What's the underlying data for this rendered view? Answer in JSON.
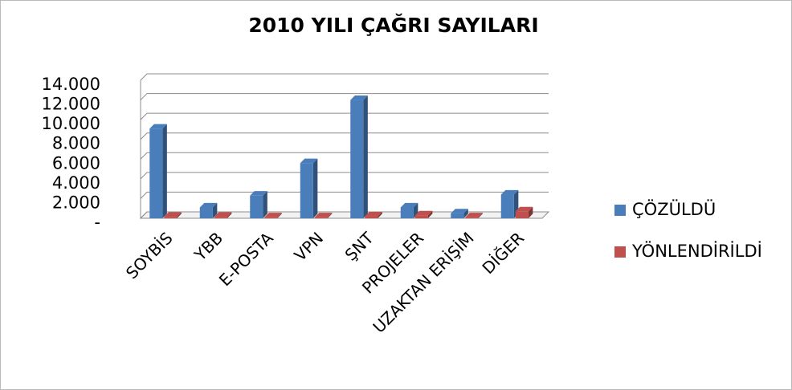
{
  "chart_data": {
    "type": "bar",
    "title": "2010 YILI ÇAĞRI SAYILARI",
    "categories": [
      "SOYBİS",
      "YBB",
      "E-POSTA",
      "VPN",
      "ŞNT",
      "PROJELER",
      "UZAKTAN ERİŞİM",
      "DİĞER"
    ],
    "series": [
      {
        "name": "ÇÖZÜLDÜ",
        "color": "#4a7ebb",
        "values": [
          9100,
          1100,
          2300,
          5600,
          12000,
          1100,
          500,
          2400
        ]
      },
      {
        "name": "YÖNLENDİRİLDİ",
        "color": "#c0504d",
        "values": [
          150,
          150,
          100,
          100,
          200,
          300,
          100,
          700
        ]
      }
    ],
    "ylim": [
      0,
      14000
    ],
    "yticks": [
      {
        "value": 0,
        "label": "-"
      },
      {
        "value": 2000,
        "label": "2.000"
      },
      {
        "value": 4000,
        "label": "4.000"
      },
      {
        "value": 6000,
        "label": "6.000"
      },
      {
        "value": 8000,
        "label": "8.000"
      },
      {
        "value": 10000,
        "label": "10.000"
      },
      {
        "value": 12000,
        "label": "12.000"
      },
      {
        "value": 14000,
        "label": "14.000"
      }
    ],
    "grid": true,
    "legend": "right"
  }
}
